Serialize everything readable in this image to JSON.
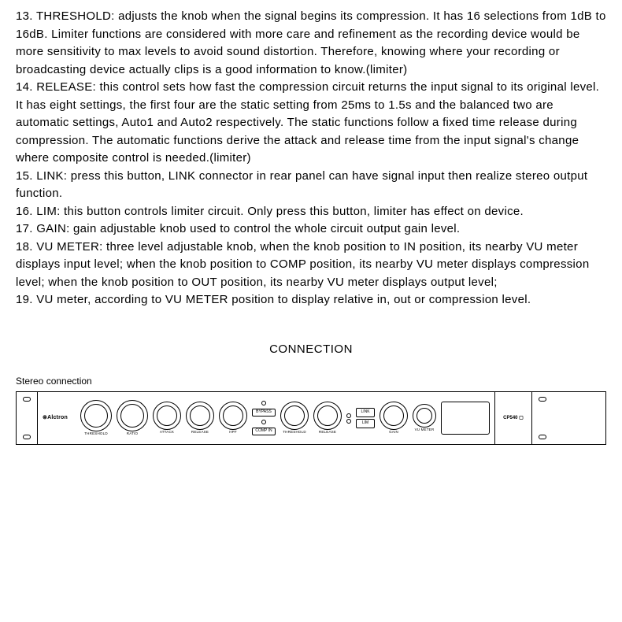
{
  "paragraphs": [
    "13. THRESHOLD: adjusts the knob when the signal begins its compression. It has 16 selections from 1dB to 16dB. Limiter functions are considered with more care and refinement as the recording device would be more sensitivity to max levels to avoid sound distortion. Therefore, knowing where your recording or broadcasting device actually clips is a good information to know.(limiter)",
    "14. RELEASE: this control sets how fast the compression circuit returns the input signal to its original level. It has eight settings, the first four are the static setting from 25ms to 1.5s and the balanced two are automatic settings, Auto1 and Auto2 respectively. The static functions follow a fixed time release during compression. The automatic functions derive the attack and release time from the input signal's change where composite control is needed.(limiter)",
    "15. LINK: press this button, LINK connector in rear panel can have signal input then realize stereo output function.",
    "16. LIM: this button controls limiter circuit. Only press this button, limiter has effect on device.",
    "17. GAIN: gain adjustable knob used to control the whole circuit output gain level.",
    "18. VU METER: three level adjustable knob, when the knob position to IN position, its nearby VU meter displays input level; when the knob position to COMP position, its nearby VU meter displays compression level; when the knob position to OUT position, its nearby VU meter displays output level;",
    "19. VU meter, according to VU METER position to display relative in, out or compression level."
  ],
  "connection_heading": "CONNECTION",
  "stereo_label": "Stereo connection",
  "device": {
    "brand": "⊗Alctron",
    "model": "CP540 ▢",
    "knob_labels": [
      "THRESHOLD",
      "RATIO",
      "ATTACK",
      "RELEASE",
      "HPF",
      "THRESHOLD",
      "RELEASE",
      "GAIN",
      "VU METER"
    ],
    "center_btns": [
      "BYPASS",
      "COMP IN"
    ],
    "right_btns": [
      "LINK",
      "LIM"
    ],
    "colors": {
      "border": "#000000",
      "bg": "#ffffff",
      "text": "#000000"
    }
  }
}
